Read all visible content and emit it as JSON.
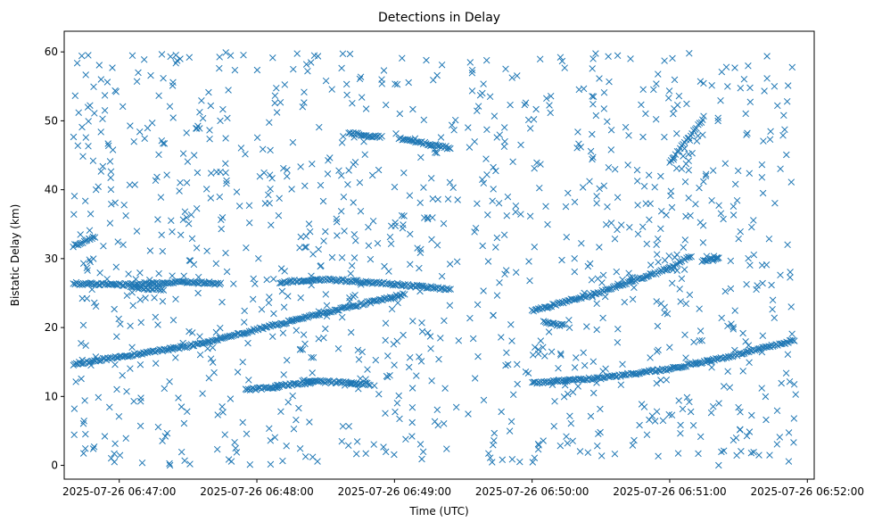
{
  "chart_data": {
    "type": "scatter",
    "title": "Detections in Delay",
    "xlabel": "Time (UTC)",
    "ylabel": "Bistatic Delay (km)",
    "x_axis_type": "datetime",
    "xlim": [
      "2025-07-26 06:46:36",
      "2025-07-26 06:52:03"
    ],
    "ylim": [
      -2,
      63
    ],
    "x_ticks": [
      "2025-07-26 06:47:00",
      "2025-07-26 06:48:00",
      "2025-07-26 06:49:00",
      "2025-07-26 06:50:00",
      "2025-07-26 06:51:00",
      "2025-07-26 06:52:00"
    ],
    "x_tick_labels": [
      "2025-07-26 06:47:00",
      "2025-07-26 06:48:00",
      "2025-07-26 06:49:00",
      "2025-07-26 06:50:00",
      "2025-07-26 06:51:00",
      "2025-07-26 06:52:00"
    ],
    "y_ticks": [
      0,
      10,
      20,
      30,
      40,
      50,
      60
    ],
    "y_tick_labels": [
      "0",
      "10",
      "20",
      "30",
      "40",
      "50",
      "60"
    ],
    "marker": "x",
    "color": "#1f77b4",
    "grid": false,
    "legend": false,
    "series": [
      {
        "tracks": [
          {
            "x": [
              "2025-07-26 06:46:40",
              "2025-07-26 06:47:30",
              "2025-07-26 06:48:00",
              "2025-07-26 06:48:30",
              "2025-07-26 06:49:00",
              "2025-07-26 06:49:05"
            ],
            "y": [
              14.7,
              17.3,
              19.7,
              22.2,
              24.5,
              25.0
            ]
          },
          {
            "x": [
              "2025-07-26 06:50:00",
              "2025-07-26 06:50:30",
              "2025-07-26 06:51:00",
              "2025-07-26 06:51:30",
              "2025-07-26 06:51:55"
            ],
            "y": [
              12.0,
              12.7,
              14.0,
              16.1,
              18.2
            ]
          },
          {
            "x": [
              "2025-07-26 06:50:00",
              "2025-07-26 06:50:30",
              "2025-07-26 06:51:00",
              "2025-07-26 06:51:10"
            ],
            "y": [
              22.4,
              25.2,
              28.6,
              30.6
            ]
          },
          {
            "x": [
              "2025-07-26 06:46:40",
              "2025-07-26 06:47:00",
              "2025-07-26 06:47:30",
              "2025-07-26 06:47:45"
            ],
            "y": [
              26.4,
              26.2,
              26.6,
              26.3
            ]
          },
          {
            "x": [
              "2025-07-26 06:47:05",
              "2025-07-26 06:47:20"
            ],
            "y": [
              25.8,
              25.5
            ]
          },
          {
            "x": [
              "2025-07-26 06:48:10",
              "2025-07-26 06:48:30",
              "2025-07-26 06:49:00",
              "2025-07-26 06:49:25"
            ],
            "y": [
              26.6,
              27.0,
              26.3,
              25.5
            ]
          },
          {
            "x": [
              "2025-07-26 06:46:40",
              "2025-07-26 06:46:50"
            ],
            "y": [
              31.8,
              33.3
            ]
          },
          {
            "x": [
              "2025-07-26 06:48:40",
              "2025-07-26 06:48:55"
            ],
            "y": [
              48.2,
              47.6
            ]
          },
          {
            "x": [
              "2025-07-26 06:49:02",
              "2025-07-26 06:49:25"
            ],
            "y": [
              47.4,
              46.0
            ]
          },
          {
            "x": [
              "2025-07-26 06:47:55",
              "2025-07-26 06:48:10"
            ],
            "y": [
              11.0,
              11.4
            ]
          },
          {
            "x": [
              "2025-07-26 06:48:08",
              "2025-07-26 06:48:25"
            ],
            "y": [
              11.5,
              12.0
            ]
          },
          {
            "x": [
              "2025-07-26 06:48:20",
              "2025-07-26 06:48:50"
            ],
            "y": [
              12.3,
              11.8
            ]
          },
          {
            "x": [
              "2025-07-26 06:50:05",
              "2025-07-26 06:50:14"
            ],
            "y": [
              20.8,
              20.3
            ]
          },
          {
            "x": [
              "2025-07-26 06:51:14",
              "2025-07-26 06:51:22"
            ],
            "y": [
              29.7,
              30.2
            ]
          },
          {
            "x": [
              "2025-07-26 06:51:00",
              "2025-07-26 06:51:15"
            ],
            "y": [
              44.0,
              50.5
            ]
          }
        ]
      }
    ]
  }
}
